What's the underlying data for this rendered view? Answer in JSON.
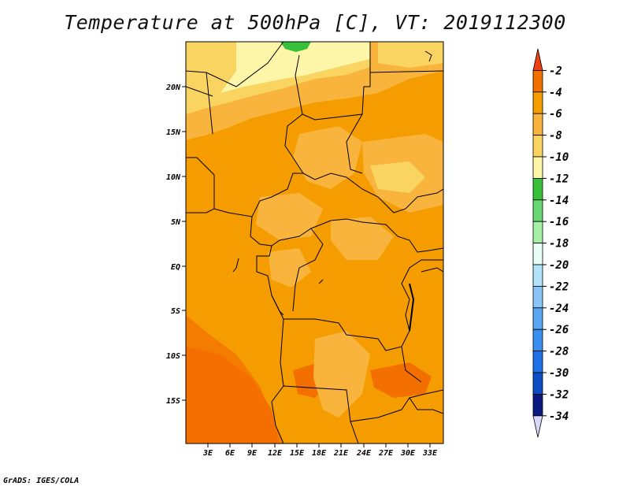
{
  "title": "Temperature at 500hPa [C], VT: 2019112300",
  "credit": "GrADS: IGES/COLA",
  "map": {
    "lat_labels": [
      "20N",
      "15N",
      "10N",
      "5N",
      "EQ",
      "5S",
      "10S",
      "15S"
    ],
    "lon_labels": [
      "3E",
      "6E",
      "9E",
      "12E",
      "15E",
      "18E",
      "21E",
      "24E",
      "27E",
      "30E",
      "33E"
    ]
  },
  "colorbar": {
    "labels": [
      "-2",
      "-4",
      "-6",
      "-8",
      "-10",
      "-12",
      "-14",
      "-16",
      "-18",
      "-20",
      "-22",
      "-24",
      "-26",
      "-28",
      "-30",
      "-32",
      "-34"
    ],
    "colors": [
      "#f04010",
      "#f36f00",
      "#f59c00",
      "#f8b43c",
      "#fad460",
      "#fdf5a8",
      "#38c03a",
      "#6ad873",
      "#a6f0a6",
      "#e8fdf3",
      "#b4e2fa",
      "#8ac5f6",
      "#5aa8f3",
      "#3a8ef0",
      "#1f70e6",
      "#0e4cc4",
      "#0b1a80",
      "#d8d8fa"
    ]
  },
  "colors": {
    "orange_main": "#f59c00",
    "orange_light": "#f8b43c",
    "yellow": "#fad460",
    "cream": "#fdf5a8",
    "green": "#38c03a",
    "red_orange": "#f36f00"
  }
}
